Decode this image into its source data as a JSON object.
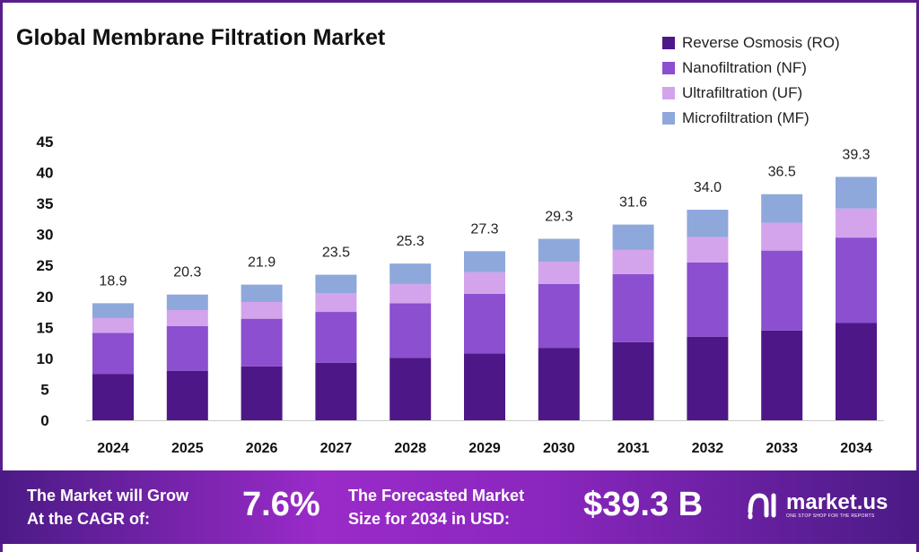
{
  "chart_data": {
    "type": "bar",
    "stacked": true,
    "title": "Global Membrane Filtration Market",
    "categories": [
      "2024",
      "2025",
      "2026",
      "2027",
      "2028",
      "2029",
      "2030",
      "2031",
      "2032",
      "2033",
      "2034"
    ],
    "totals": [
      "18.9",
      "20.3",
      "21.9",
      "23.5",
      "25.3",
      "27.3",
      "29.3",
      "31.6",
      "34.0",
      "36.5",
      "39.3"
    ],
    "series": [
      {
        "name": "Reverse Osmosis (RO)",
        "color": "#4e1787",
        "values": [
          7.5,
          8.0,
          8.7,
          9.3,
          10.1,
          10.8,
          11.7,
          12.6,
          13.5,
          14.5,
          15.7
        ]
      },
      {
        "name": "Nanofiltration (NF)",
        "color": "#8b4fcf",
        "values": [
          6.6,
          7.2,
          7.7,
          8.2,
          8.8,
          9.6,
          10.3,
          11.0,
          12.0,
          12.9,
          13.8
        ]
      },
      {
        "name": "Ultrafiltration (UF)",
        "color": "#d3a4ec",
        "values": [
          2.4,
          2.6,
          2.7,
          3.0,
          3.1,
          3.5,
          3.6,
          3.9,
          4.1,
          4.5,
          4.7
        ]
      },
      {
        "name": "Microfiltration (MF)",
        "color": "#8ea8dc",
        "values": [
          2.4,
          2.5,
          2.8,
          3.0,
          3.3,
          3.4,
          3.7,
          4.1,
          4.4,
          4.6,
          5.1
        ]
      }
    ],
    "yticks": [
      "0",
      "5",
      "10",
      "15",
      "20",
      "25",
      "30",
      "35",
      "40",
      "45"
    ],
    "ylim": [
      0,
      45
    ],
    "grid": false,
    "legend": "top-right"
  },
  "footer": {
    "cagr_label_1": "The Market will Grow",
    "cagr_label_2": "At the CAGR of:",
    "cagr_value": "7.6%",
    "forecast_label_1": "The Forecasted Market",
    "forecast_label_2": "Size for 2034 in USD:",
    "forecast_value": "$39.3 B",
    "logo_name": "market.us",
    "logo_tagline": "ONE STOP SHOP FOR THE REPORTS"
  }
}
